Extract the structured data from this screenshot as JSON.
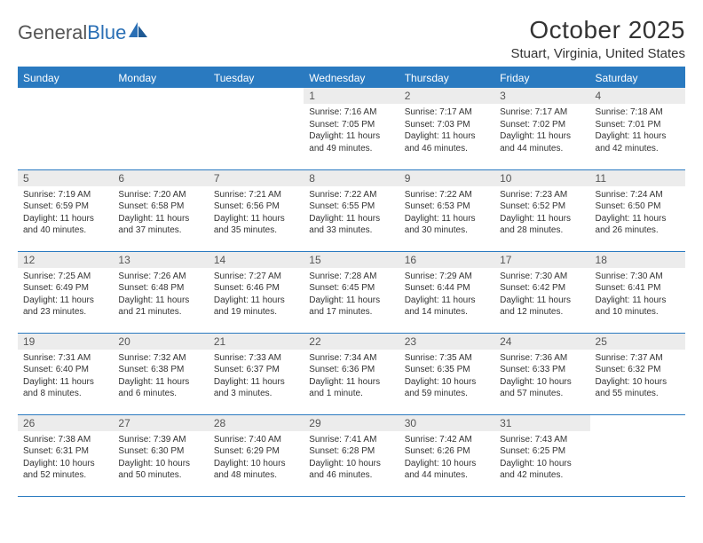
{
  "brand": {
    "word1": "General",
    "word2": "Blue"
  },
  "title": "October 2025",
  "location": "Stuart, Virginia, United States",
  "colors": {
    "header_bg": "#2a7ac0",
    "header_text": "#ffffff",
    "daynum_bg": "#ececec",
    "border": "#2a7ac0",
    "brand_gray": "#555555",
    "brand_blue": "#2a6fb5"
  },
  "weekday_labels": [
    "Sunday",
    "Monday",
    "Tuesday",
    "Wednesday",
    "Thursday",
    "Friday",
    "Saturday"
  ],
  "weeks": [
    [
      {
        "num": "",
        "sunrise": "",
        "sunset": "",
        "daylight1": "",
        "daylight2": ""
      },
      {
        "num": "",
        "sunrise": "",
        "sunset": "",
        "daylight1": "",
        "daylight2": ""
      },
      {
        "num": "",
        "sunrise": "",
        "sunset": "",
        "daylight1": "",
        "daylight2": ""
      },
      {
        "num": "1",
        "sunrise": "Sunrise: 7:16 AM",
        "sunset": "Sunset: 7:05 PM",
        "daylight1": "Daylight: 11 hours",
        "daylight2": "and 49 minutes."
      },
      {
        "num": "2",
        "sunrise": "Sunrise: 7:17 AM",
        "sunset": "Sunset: 7:03 PM",
        "daylight1": "Daylight: 11 hours",
        "daylight2": "and 46 minutes."
      },
      {
        "num": "3",
        "sunrise": "Sunrise: 7:17 AM",
        "sunset": "Sunset: 7:02 PM",
        "daylight1": "Daylight: 11 hours",
        "daylight2": "and 44 minutes."
      },
      {
        "num": "4",
        "sunrise": "Sunrise: 7:18 AM",
        "sunset": "Sunset: 7:01 PM",
        "daylight1": "Daylight: 11 hours",
        "daylight2": "and 42 minutes."
      }
    ],
    [
      {
        "num": "5",
        "sunrise": "Sunrise: 7:19 AM",
        "sunset": "Sunset: 6:59 PM",
        "daylight1": "Daylight: 11 hours",
        "daylight2": "and 40 minutes."
      },
      {
        "num": "6",
        "sunrise": "Sunrise: 7:20 AM",
        "sunset": "Sunset: 6:58 PM",
        "daylight1": "Daylight: 11 hours",
        "daylight2": "and 37 minutes."
      },
      {
        "num": "7",
        "sunrise": "Sunrise: 7:21 AM",
        "sunset": "Sunset: 6:56 PM",
        "daylight1": "Daylight: 11 hours",
        "daylight2": "and 35 minutes."
      },
      {
        "num": "8",
        "sunrise": "Sunrise: 7:22 AM",
        "sunset": "Sunset: 6:55 PM",
        "daylight1": "Daylight: 11 hours",
        "daylight2": "and 33 minutes."
      },
      {
        "num": "9",
        "sunrise": "Sunrise: 7:22 AM",
        "sunset": "Sunset: 6:53 PM",
        "daylight1": "Daylight: 11 hours",
        "daylight2": "and 30 minutes."
      },
      {
        "num": "10",
        "sunrise": "Sunrise: 7:23 AM",
        "sunset": "Sunset: 6:52 PM",
        "daylight1": "Daylight: 11 hours",
        "daylight2": "and 28 minutes."
      },
      {
        "num": "11",
        "sunrise": "Sunrise: 7:24 AM",
        "sunset": "Sunset: 6:50 PM",
        "daylight1": "Daylight: 11 hours",
        "daylight2": "and 26 minutes."
      }
    ],
    [
      {
        "num": "12",
        "sunrise": "Sunrise: 7:25 AM",
        "sunset": "Sunset: 6:49 PM",
        "daylight1": "Daylight: 11 hours",
        "daylight2": "and 23 minutes."
      },
      {
        "num": "13",
        "sunrise": "Sunrise: 7:26 AM",
        "sunset": "Sunset: 6:48 PM",
        "daylight1": "Daylight: 11 hours",
        "daylight2": "and 21 minutes."
      },
      {
        "num": "14",
        "sunrise": "Sunrise: 7:27 AM",
        "sunset": "Sunset: 6:46 PM",
        "daylight1": "Daylight: 11 hours",
        "daylight2": "and 19 minutes."
      },
      {
        "num": "15",
        "sunrise": "Sunrise: 7:28 AM",
        "sunset": "Sunset: 6:45 PM",
        "daylight1": "Daylight: 11 hours",
        "daylight2": "and 17 minutes."
      },
      {
        "num": "16",
        "sunrise": "Sunrise: 7:29 AM",
        "sunset": "Sunset: 6:44 PM",
        "daylight1": "Daylight: 11 hours",
        "daylight2": "and 14 minutes."
      },
      {
        "num": "17",
        "sunrise": "Sunrise: 7:30 AM",
        "sunset": "Sunset: 6:42 PM",
        "daylight1": "Daylight: 11 hours",
        "daylight2": "and 12 minutes."
      },
      {
        "num": "18",
        "sunrise": "Sunrise: 7:30 AM",
        "sunset": "Sunset: 6:41 PM",
        "daylight1": "Daylight: 11 hours",
        "daylight2": "and 10 minutes."
      }
    ],
    [
      {
        "num": "19",
        "sunrise": "Sunrise: 7:31 AM",
        "sunset": "Sunset: 6:40 PM",
        "daylight1": "Daylight: 11 hours",
        "daylight2": "and 8 minutes."
      },
      {
        "num": "20",
        "sunrise": "Sunrise: 7:32 AM",
        "sunset": "Sunset: 6:38 PM",
        "daylight1": "Daylight: 11 hours",
        "daylight2": "and 6 minutes."
      },
      {
        "num": "21",
        "sunrise": "Sunrise: 7:33 AM",
        "sunset": "Sunset: 6:37 PM",
        "daylight1": "Daylight: 11 hours",
        "daylight2": "and 3 minutes."
      },
      {
        "num": "22",
        "sunrise": "Sunrise: 7:34 AM",
        "sunset": "Sunset: 6:36 PM",
        "daylight1": "Daylight: 11 hours",
        "daylight2": "and 1 minute."
      },
      {
        "num": "23",
        "sunrise": "Sunrise: 7:35 AM",
        "sunset": "Sunset: 6:35 PM",
        "daylight1": "Daylight: 10 hours",
        "daylight2": "and 59 minutes."
      },
      {
        "num": "24",
        "sunrise": "Sunrise: 7:36 AM",
        "sunset": "Sunset: 6:33 PM",
        "daylight1": "Daylight: 10 hours",
        "daylight2": "and 57 minutes."
      },
      {
        "num": "25",
        "sunrise": "Sunrise: 7:37 AM",
        "sunset": "Sunset: 6:32 PM",
        "daylight1": "Daylight: 10 hours",
        "daylight2": "and 55 minutes."
      }
    ],
    [
      {
        "num": "26",
        "sunrise": "Sunrise: 7:38 AM",
        "sunset": "Sunset: 6:31 PM",
        "daylight1": "Daylight: 10 hours",
        "daylight2": "and 52 minutes."
      },
      {
        "num": "27",
        "sunrise": "Sunrise: 7:39 AM",
        "sunset": "Sunset: 6:30 PM",
        "daylight1": "Daylight: 10 hours",
        "daylight2": "and 50 minutes."
      },
      {
        "num": "28",
        "sunrise": "Sunrise: 7:40 AM",
        "sunset": "Sunset: 6:29 PM",
        "daylight1": "Daylight: 10 hours",
        "daylight2": "and 48 minutes."
      },
      {
        "num": "29",
        "sunrise": "Sunrise: 7:41 AM",
        "sunset": "Sunset: 6:28 PM",
        "daylight1": "Daylight: 10 hours",
        "daylight2": "and 46 minutes."
      },
      {
        "num": "30",
        "sunrise": "Sunrise: 7:42 AM",
        "sunset": "Sunset: 6:26 PM",
        "daylight1": "Daylight: 10 hours",
        "daylight2": "and 44 minutes."
      },
      {
        "num": "31",
        "sunrise": "Sunrise: 7:43 AM",
        "sunset": "Sunset: 6:25 PM",
        "daylight1": "Daylight: 10 hours",
        "daylight2": "and 42 minutes."
      },
      {
        "num": "",
        "sunrise": "",
        "sunset": "",
        "daylight1": "",
        "daylight2": ""
      }
    ]
  ]
}
